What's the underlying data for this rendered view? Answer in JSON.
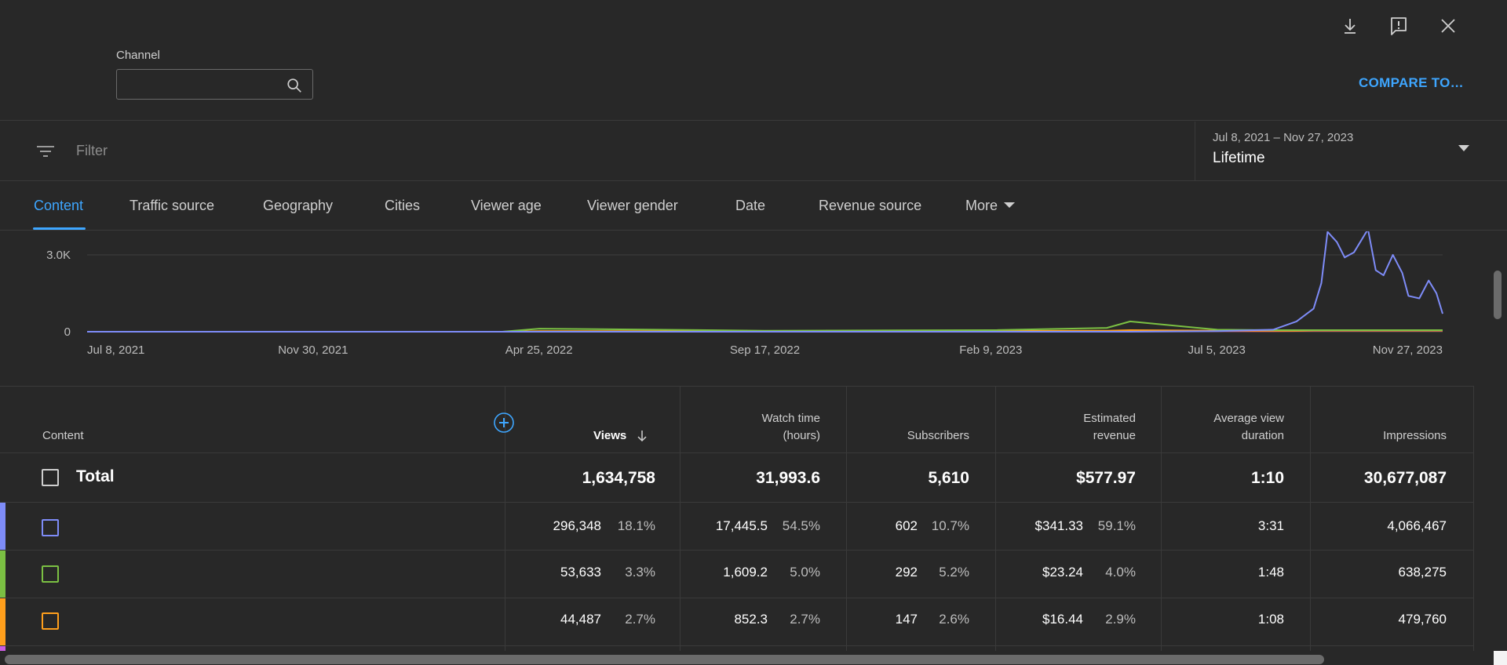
{
  "channel": {
    "label": "Channel",
    "value": "",
    "placeholder": ""
  },
  "toolbar": {
    "compare_label": "COMPARE TO…",
    "icons": [
      "download-icon",
      "feedback-icon",
      "close-icon"
    ]
  },
  "filter": {
    "placeholder": "Filter"
  },
  "date_range": {
    "range": "Jul 8, 2021 – Nov 27, 2023",
    "period": "Lifetime"
  },
  "tabs": [
    {
      "label": "Content",
      "active": true
    },
    {
      "label": "Traffic source",
      "active": false
    },
    {
      "label": "Geography",
      "active": false
    },
    {
      "label": "Cities",
      "active": false
    },
    {
      "label": "Viewer age",
      "active": false
    },
    {
      "label": "Viewer gender",
      "active": false
    },
    {
      "label": "Date",
      "active": false
    },
    {
      "label": "Revenue source",
      "active": false
    },
    {
      "label": "More",
      "active": false
    }
  ],
  "chart_data": {
    "type": "line",
    "x_ticks": [
      "Jul 8, 2021",
      "Nov 30, 2021",
      "Apr 25, 2022",
      "Sep 17, 2022",
      "Feb 9, 2023",
      "Jul 5, 2023",
      "Nov 27, 2023"
    ],
    "y_ticks": [
      "0",
      "3.0K"
    ],
    "ylim": [
      0,
      4000
    ],
    "x": [
      "2021-07-08",
      "2022-04-01",
      "2022-04-25",
      "2022-09-17",
      "2023-02-09",
      "2023-04-25",
      "2023-05-10",
      "2023-07-05",
      "2023-08-10",
      "2023-08-25",
      "2023-09-05",
      "2023-09-10",
      "2023-09-14",
      "2023-09-20",
      "2023-09-25",
      "2023-10-01",
      "2023-10-10",
      "2023-10-15",
      "2023-10-20",
      "2023-10-26",
      "2023-11-01",
      "2023-11-05",
      "2023-11-12",
      "2023-11-18",
      "2023-11-23",
      "2023-11-27"
    ],
    "series": [
      {
        "color": "#7e8cf8",
        "values": [
          0,
          0,
          0,
          0,
          0,
          0,
          0,
          20,
          80,
          400,
          900,
          1900,
          3900,
          3500,
          2900,
          3100,
          4000,
          2400,
          2200,
          3000,
          2300,
          1400,
          1300,
          2000,
          1500,
          700
        ]
      },
      {
        "color": "#7bc043",
        "values": [
          0,
          0,
          120,
          40,
          60,
          150,
          400,
          80,
          60,
          60,
          60,
          60,
          60,
          60,
          60,
          60,
          60,
          60,
          60,
          60,
          60,
          60,
          60,
          60,
          60,
          60
        ]
      },
      {
        "color": "#ff9f1c",
        "values": [
          0,
          0,
          20,
          20,
          30,
          40,
          60,
          40,
          40,
          40,
          50,
          50,
          50,
          50,
          50,
          50,
          50,
          50,
          50,
          50,
          50,
          50,
          50,
          50,
          50,
          50
        ]
      },
      {
        "color": "#e84a7f",
        "values": [
          0,
          0,
          10,
          10,
          10,
          20,
          30,
          20,
          20,
          30,
          40,
          40,
          40,
          40,
          40,
          40,
          40,
          40,
          40,
          40,
          40,
          40,
          40,
          40,
          40,
          40
        ]
      }
    ]
  },
  "table": {
    "columns": [
      {
        "label": "Content"
      },
      {
        "label": "Views",
        "sorted": "desc"
      },
      {
        "label": "Watch time (hours)",
        "line1": "Watch time",
        "line2": "(hours)"
      },
      {
        "label": "Subscribers"
      },
      {
        "label": "Estimated revenue",
        "line1": "Estimated",
        "line2": "revenue"
      },
      {
        "label": "Average view duration",
        "line1": "Average view",
        "line2": "duration"
      },
      {
        "label": "Impressions"
      }
    ],
    "total": {
      "label": "Total",
      "views": "1,634,758",
      "watch_time": "31,993.6",
      "subscribers": "5,610",
      "revenue": "$577.97",
      "avg_duration": "1:10",
      "impressions": "30,677,087"
    },
    "rows": [
      {
        "color": "#7e8cf8",
        "views": "296,348",
        "views_pct": "18.1%",
        "watch_time": "17,445.5",
        "watch_pct": "54.5%",
        "subscribers": "602",
        "subs_pct": "10.7%",
        "revenue": "$341.33",
        "revenue_pct": "59.1%",
        "avg_duration": "3:31",
        "impressions": "4,066,467"
      },
      {
        "color": "#7bc043",
        "views": "53,633",
        "views_pct": "3.3%",
        "watch_time": "1,609.2",
        "watch_pct": "5.0%",
        "subscribers": "292",
        "subs_pct": "5.2%",
        "revenue": "$23.24",
        "revenue_pct": "4.0%",
        "avg_duration": "1:48",
        "impressions": "638,275"
      },
      {
        "color": "#ff9f1c",
        "views": "44,487",
        "views_pct": "2.7%",
        "watch_time": "852.3",
        "watch_pct": "2.7%",
        "subscribers": "147",
        "subs_pct": "2.6%",
        "revenue": "$16.44",
        "revenue_pct": "2.9%",
        "avg_duration": "1:08",
        "impressions": "479,760"
      }
    ]
  }
}
